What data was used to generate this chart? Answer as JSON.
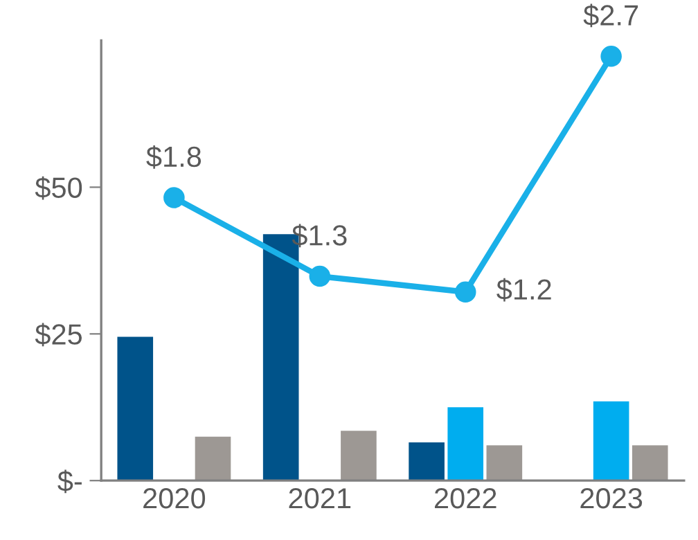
{
  "chart_data": {
    "type": "bar",
    "categories": [
      "2020",
      "2021",
      "2022",
      "2023"
    ],
    "series": [
      {
        "color": "#00538a",
        "values": [
          24.5,
          42,
          6.5,
          null
        ]
      },
      {
        "color": "#00adef",
        "values": [
          null,
          null,
          12.5,
          13.5
        ]
      },
      {
        "color": "#9d9894",
        "values": [
          7.5,
          8.5,
          6,
          6
        ]
      },
      {
        "type": "line",
        "axis": "y2",
        "color": "#1ab0e8",
        "values": [
          1.8,
          1.3,
          1.2,
          2.7
        ],
        "value_labels": [
          "$1.8",
          "$1.3",
          "$1.2",
          "$2.7"
        ],
        "marker": "circle"
      }
    ],
    "ylim": [
      0,
      75
    ],
    "yticks": [
      {
        "value": 0,
        "label": "$-"
      },
      {
        "value": 25,
        "label": "$25"
      },
      {
        "value": 50,
        "label": "$50"
      }
    ],
    "y2lim": [
      0,
      2.8
    ],
    "grid": false,
    "legend": false
  }
}
